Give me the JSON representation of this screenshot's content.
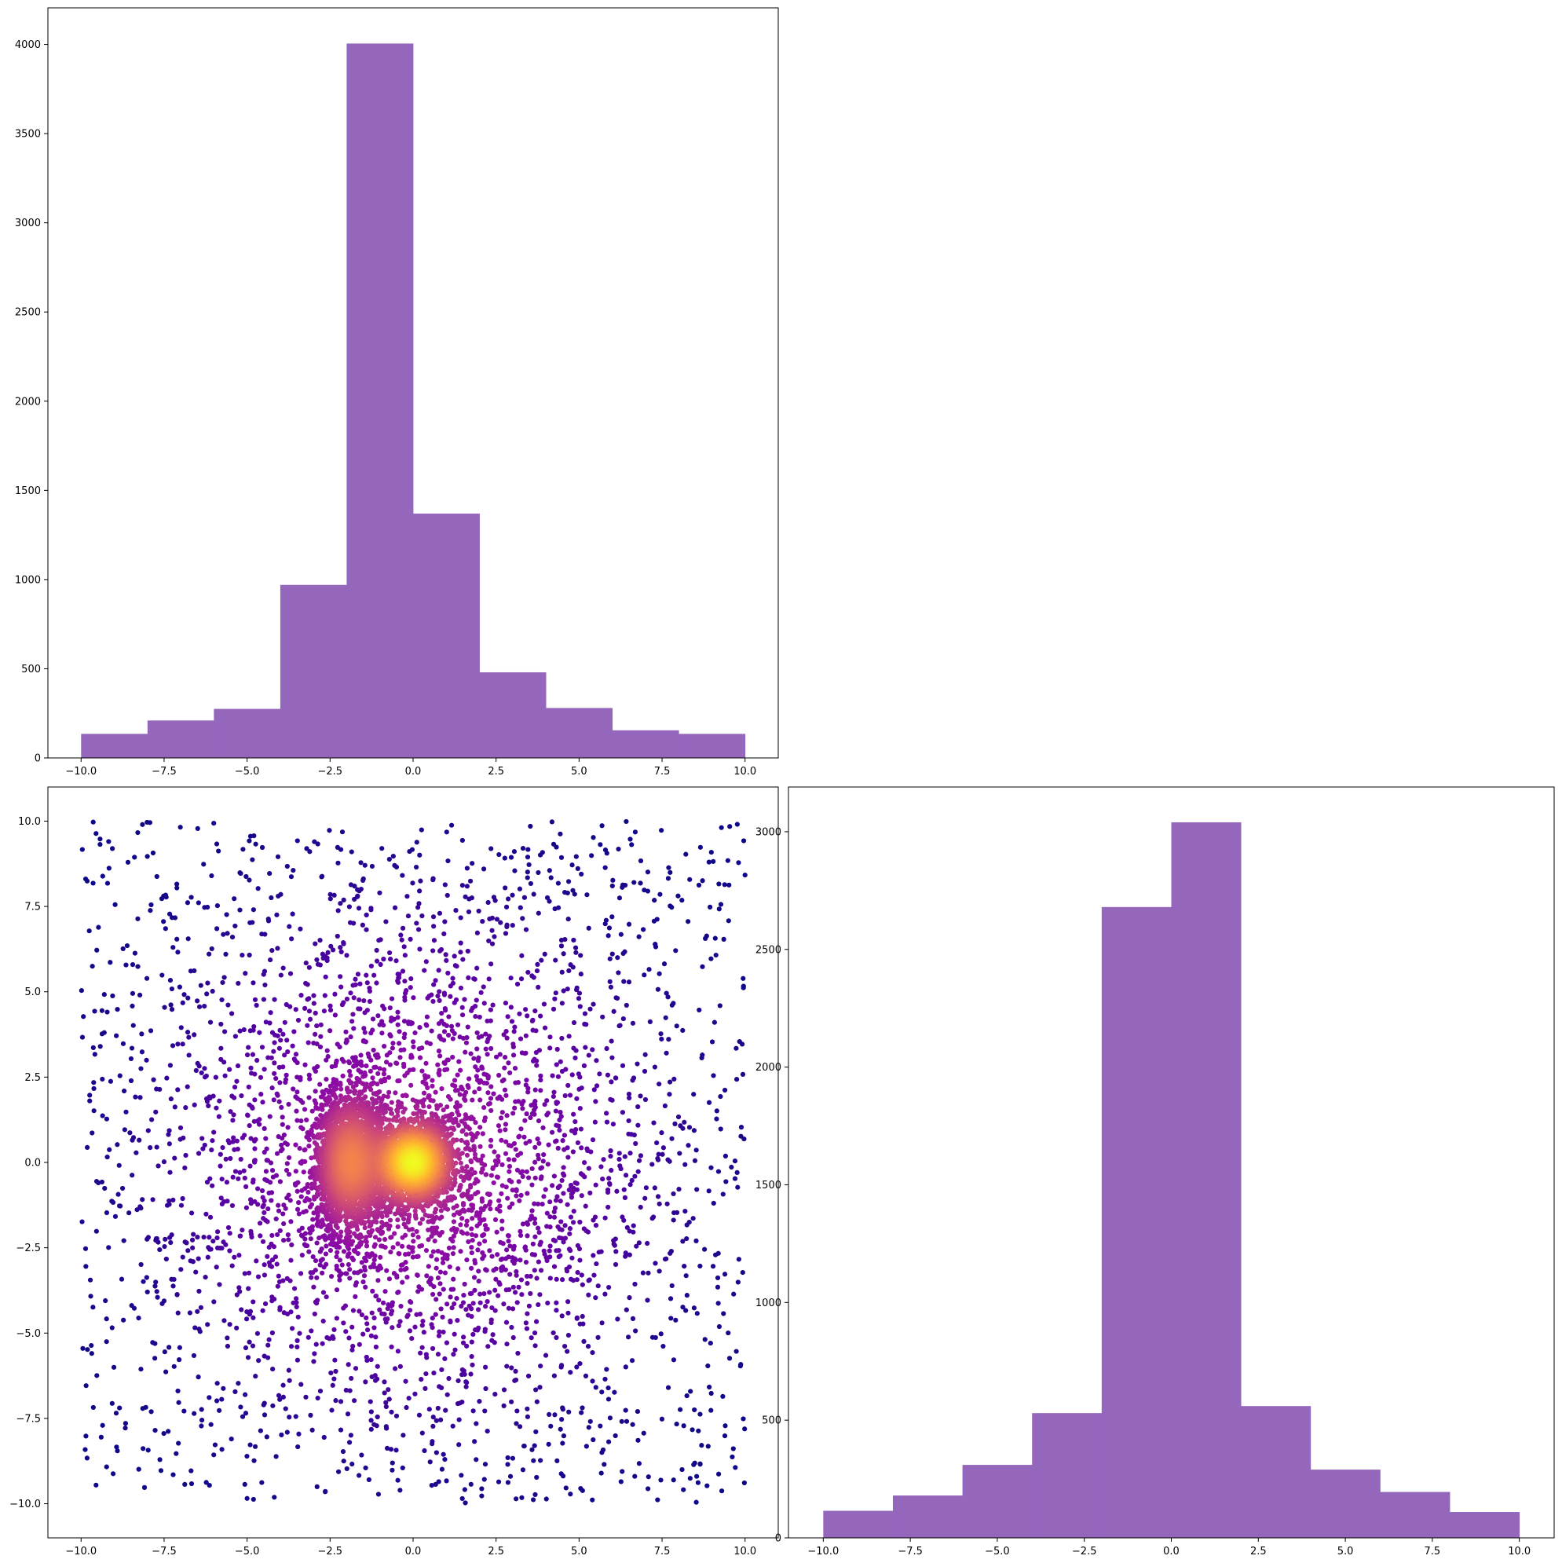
{
  "chart_data": [
    {
      "type": "bar",
      "subtype": "histogram",
      "bin_edges": [
        -10,
        -8,
        -6,
        -4,
        -2,
        0,
        2,
        4,
        6,
        8,
        10
      ],
      "values": [
        135,
        210,
        275,
        970,
        4005,
        1370,
        480,
        280,
        155,
        135
      ],
      "color": "#9467bd",
      "xlim": [
        -11,
        11
      ],
      "ylim": [
        0,
        4205
      ],
      "xticks": [
        -10.0,
        -7.5,
        -5.0,
        -2.5,
        0.0,
        2.5,
        5.0,
        7.5,
        10.0
      ],
      "xtick_labels": [
        "−10.0",
        "−7.5",
        "−5.0",
        "−2.5",
        "0.0",
        "2.5",
        "5.0",
        "7.5",
        "10.0"
      ],
      "yticks": [
        0,
        500,
        1000,
        1500,
        2000,
        2500,
        3000,
        3500,
        4000
      ],
      "ytick_labels": [
        "0",
        "500",
        "1000",
        "1500",
        "2000",
        "2500",
        "3000",
        "3500",
        "4000"
      ],
      "grid": false
    },
    {
      "type": "scatter",
      "colormap": "plasma",
      "color_meaning": "point density (high = yellow near origin, low = dark purple at edges)",
      "n_points": 8000,
      "xlim": [
        -11,
        11
      ],
      "ylim": [
        -11,
        11
      ],
      "xticks": [
        -10.0,
        -7.5,
        -5.0,
        -2.5,
        0.0,
        2.5,
        5.0,
        7.5,
        10.0
      ],
      "xtick_labels": [
        "−10.0",
        "−7.5",
        "−5.0",
        "−2.5",
        "0.0",
        "2.5",
        "5.0",
        "7.5",
        "10.0"
      ],
      "yticks": [
        -10.0,
        -7.5,
        -5.0,
        -2.5,
        0.0,
        2.5,
        5.0,
        7.5,
        10.0
      ],
      "ytick_labels": [
        "−10.0",
        "−7.5",
        "−5.0",
        "−2.5",
        "0.0",
        "2.5",
        "5.0",
        "7.5",
        "10.0"
      ],
      "grid": false
    },
    {
      "type": "bar",
      "subtype": "histogram",
      "bin_edges": [
        -10,
        -8,
        -6,
        -4,
        -2,
        0,
        2,
        4,
        6,
        8,
        10
      ],
      "values": [
        115,
        180,
        310,
        530,
        2680,
        3040,
        560,
        290,
        195,
        110
      ],
      "color": "#9467bd",
      "xlim": [
        -11,
        11
      ],
      "ylim": [
        0,
        3190
      ],
      "xticks": [
        -10.0,
        -7.5,
        -5.0,
        -2.5,
        0.0,
        2.5,
        5.0,
        7.5,
        10.0
      ],
      "xtick_labels": [
        "−10.0",
        "−7.5",
        "−5.0",
        "−2.5",
        "0.0",
        "2.5",
        "5.0",
        "7.5",
        "10.0"
      ],
      "yticks": [
        0,
        500,
        1000,
        1500,
        2000,
        2500,
        3000
      ],
      "ytick_labels": [
        "0",
        "500",
        "1000",
        "1500",
        "2000",
        "2500",
        "3000"
      ],
      "grid": false
    }
  ]
}
